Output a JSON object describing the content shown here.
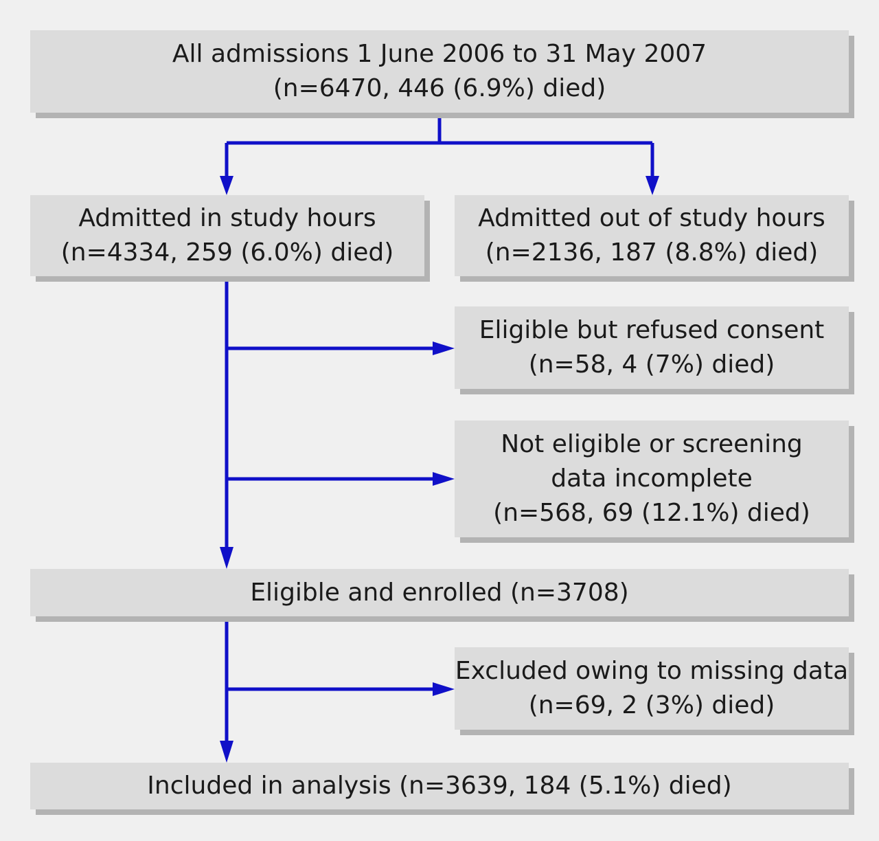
{
  "boxes": {
    "all_admissions": {
      "line1": "All admissions 1 June 2006 to 31 May 2007",
      "line2": "(n=6470, 446 (6.9%) died)"
    },
    "study_hours": {
      "line1": "Admitted in study hours",
      "line2": "(n=4334, 259 (6.0%) died)"
    },
    "out_of_hours": {
      "line1": "Admitted out of study hours",
      "line2": "(n=2136, 187 (8.8%) died)"
    },
    "refused_consent": {
      "line1": "Eligible but refused consent",
      "line2": "(n=58, 4 (7%) died)"
    },
    "not_eligible": {
      "line1": "Not eligible or screening",
      "line2": "data incomplete",
      "line3": "(n=568, 69 (12.1%) died)"
    },
    "enrolled": {
      "line1": "Eligible and enrolled (n=3708)"
    },
    "missing_data": {
      "line1": "Excluded owing to missing data",
      "line2": "(n=69, 2 (3%) died)"
    },
    "included": {
      "line1": "Included in analysis (n=3639, 184 (5.1%) died)"
    }
  },
  "colors": {
    "arrow": "#1010c8",
    "box_fill": "#dcdcdc",
    "box_shadow": "#b3b3b3",
    "background": "#f0f0f0"
  }
}
